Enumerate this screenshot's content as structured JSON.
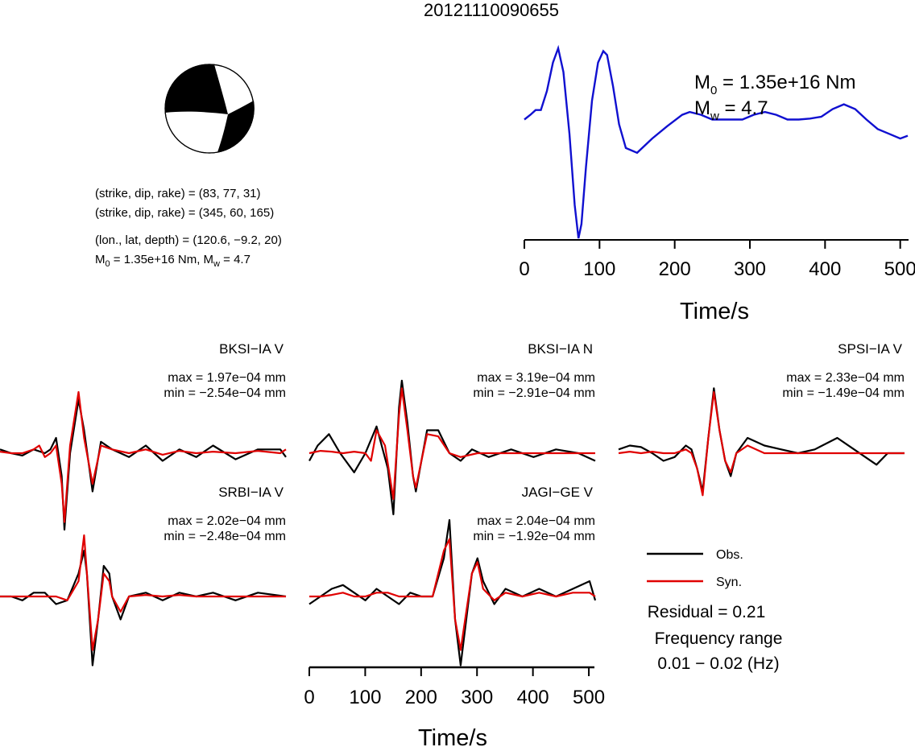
{
  "title": "20121110090655",
  "focal_mechanism": {
    "lines": [
      "(strike, dip, rake) = (83, 77, 31)",
      "(strike, dip, rake) = (345, 60, 165)",
      "(lon., lat, depth) = (120.6, −9.2, 20)"
    ],
    "m0_label": "M",
    "m0_sub": "0",
    "m0_rest": " = 1.35e+16 Nm, M",
    "mw_sub": "w",
    "mw_rest": " = 4.7"
  },
  "stf": {
    "m0_text": " = 1.35e+16 Nm",
    "mw_text": " = 4.7",
    "xlabel": "Time/s",
    "xticks": [
      "0",
      "100",
      "200",
      "300",
      "400",
      "500"
    ]
  },
  "colors": {
    "obs": "#000000",
    "syn": "#e00000",
    "stf": "#1010d0",
    "beach_fill": "#000000"
  },
  "legend": {
    "obs": "Obs.",
    "syn": "Syn."
  },
  "residual": "Residual = 0.21",
  "freq_title": "Frequency range",
  "freq_value": "0.01 − 0.02 (Hz)",
  "waveform_axis": {
    "xlabel": "Time/s",
    "xticks": [
      "0",
      "100",
      "200",
      "300",
      "400",
      "500"
    ]
  },
  "chart_data": [
    {
      "type": "line",
      "title": "",
      "xlabel": "Time/s",
      "ylabel": "",
      "xlim": [
        0,
        510
      ],
      "series": [
        {
          "name": "STF",
          "x": [
            0,
            8,
            15,
            22,
            30,
            38,
            45,
            52,
            60,
            67,
            72,
            76,
            82,
            90,
            98,
            105,
            110,
            118,
            126,
            135,
            150,
            170,
            190,
            210,
            220,
            235,
            250,
            270,
            290,
            305,
            320,
            335,
            350,
            365,
            380,
            395,
            410,
            425,
            440,
            455,
            470,
            485,
            500,
            510
          ],
          "y": [
            0.25,
            0.3,
            0.35,
            0.35,
            0.55,
            0.85,
            1.0,
            0.75,
            0.1,
            -0.65,
            -1.0,
            -0.85,
            -0.25,
            0.45,
            0.85,
            0.97,
            0.93,
            0.6,
            0.2,
            -0.05,
            -0.1,
            0.05,
            0.18,
            0.3,
            0.33,
            0.3,
            0.25,
            0.25,
            0.25,
            0.3,
            0.33,
            0.3,
            0.25,
            0.25,
            0.26,
            0.28,
            0.36,
            0.41,
            0.36,
            0.25,
            0.15,
            0.1,
            0.05,
            0.08
          ]
        }
      ]
    },
    {
      "type": "line",
      "title": "BKSI−IA V",
      "max_label": "max = 1.97e−04 mm",
      "min_label": "min = −2.54e−04 mm",
      "xlim": [
        0,
        510
      ],
      "series": [
        {
          "name": "Obs.",
          "x": [
            0,
            20,
            40,
            60,
            80,
            90,
            100,
            110,
            115,
            125,
            140,
            150,
            165,
            180,
            200,
            230,
            260,
            290,
            320,
            350,
            380,
            420,
            460,
            500,
            510
          ],
          "y": [
            0.05,
            0.0,
            -0.03,
            0.05,
            0.0,
            0.05,
            0.2,
            -0.3,
            -1.0,
            0.0,
            0.7,
            0.3,
            -0.5,
            0.15,
            0.05,
            -0.05,
            0.1,
            -0.1,
            0.05,
            -0.05,
            0.1,
            -0.08,
            0.05,
            0.05,
            -0.05
          ]
        },
        {
          "name": "Syn.",
          "x": [
            0,
            20,
            40,
            60,
            70,
            80,
            90,
            100,
            110,
            115,
            125,
            140,
            150,
            165,
            180,
            200,
            230,
            260,
            290,
            320,
            350,
            380,
            420,
            460,
            500,
            510
          ],
          "y": [
            0.02,
            0.0,
            0.0,
            0.05,
            0.1,
            -0.05,
            0.0,
            0.1,
            -0.4,
            -0.9,
            0.1,
            0.8,
            0.2,
            -0.4,
            0.1,
            0.05,
            0.0,
            0.05,
            -0.02,
            0.03,
            0.0,
            0.02,
            0.0,
            0.03,
            0.0,
            0.05
          ]
        }
      ]
    },
    {
      "type": "line",
      "title": "BKSI−IA N",
      "max_label": "max = 3.19e−04 mm",
      "min_label": "min = −2.91e−04 mm",
      "xlim": [
        0,
        510
      ],
      "series": [
        {
          "name": "Obs.",
          "x": [
            0,
            15,
            35,
            55,
            80,
            100,
            120,
            140,
            150,
            160,
            165,
            175,
            185,
            190,
            200,
            210,
            230,
            250,
            270,
            290,
            320,
            360,
            400,
            440,
            480,
            510
          ],
          "y": [
            -0.1,
            0.1,
            0.25,
            0.0,
            -0.25,
            0.0,
            0.35,
            -0.2,
            -0.8,
            0.6,
            0.95,
            0.4,
            -0.3,
            -0.5,
            -0.1,
            0.3,
            0.3,
            0.0,
            -0.1,
            0.05,
            -0.05,
            0.05,
            -0.05,
            0.05,
            0.0,
            -0.1
          ]
        },
        {
          "name": "Syn.",
          "x": [
            0,
            20,
            40,
            60,
            80,
            100,
            110,
            120,
            135,
            150,
            160,
            165,
            175,
            185,
            190,
            200,
            210,
            230,
            250,
            270,
            300,
            350,
            400,
            450,
            510
          ],
          "y": [
            0.0,
            0.03,
            0.02,
            0.0,
            0.02,
            0.0,
            -0.1,
            0.3,
            0.1,
            -0.6,
            0.5,
            0.85,
            0.3,
            -0.3,
            -0.45,
            -0.1,
            0.25,
            0.22,
            0.0,
            -0.05,
            0.0,
            0.0,
            0.0,
            0.0,
            0.0
          ]
        }
      ]
    },
    {
      "type": "line",
      "title": "SPSI−IA V",
      "max_label": "max = 2.33e−04 mm",
      "min_label": "min = −1.49e−04 mm",
      "xlim": [
        0,
        510
      ],
      "series": [
        {
          "name": "Obs.",
          "x": [
            0,
            20,
            40,
            60,
            80,
            100,
            120,
            130,
            140,
            150,
            160,
            170,
            180,
            190,
            200,
            210,
            230,
            260,
            290,
            320,
            350,
            390,
            420,
            460,
            480,
            510
          ],
          "y": [
            0.05,
            0.1,
            0.08,
            0.0,
            -0.1,
            -0.05,
            0.1,
            0.05,
            -0.2,
            -0.5,
            0.2,
            0.85,
            0.3,
            -0.1,
            -0.3,
            0.0,
            0.2,
            0.1,
            0.05,
            0.0,
            0.05,
            0.2,
            0.05,
            -0.15,
            0.0,
            0.0
          ]
        },
        {
          "name": "Syn.",
          "x": [
            0,
            20,
            40,
            60,
            80,
            100,
            120,
            130,
            140,
            150,
            160,
            170,
            180,
            190,
            200,
            210,
            230,
            260,
            290,
            320,
            350,
            390,
            420,
            460,
            510
          ],
          "y": [
            0.0,
            0.02,
            0.0,
            0.02,
            0.0,
            0.0,
            0.05,
            0.0,
            -0.2,
            -0.55,
            0.2,
            0.8,
            0.3,
            -0.1,
            -0.25,
            0.0,
            0.1,
            0.0,
            0.0,
            0.0,
            0.0,
            0.0,
            0.0,
            0.0,
            0.0
          ]
        }
      ]
    },
    {
      "type": "line",
      "title": "SRBI−IA V",
      "max_label": "max = 2.02e−04 mm",
      "min_label": "min = −2.48e−04 mm",
      "xlim": [
        0,
        510
      ],
      "series": [
        {
          "name": "Obs.",
          "x": [
            0,
            20,
            40,
            60,
            80,
            100,
            120,
            140,
            150,
            155,
            165,
            175,
            185,
            195,
            200,
            215,
            230,
            260,
            290,
            320,
            350,
            380,
            420,
            460,
            510
          ],
          "y": [
            0.0,
            0.0,
            -0.05,
            0.05,
            0.05,
            -0.1,
            -0.05,
            0.3,
            0.6,
            0.3,
            -0.9,
            -0.3,
            0.4,
            0.3,
            0.0,
            -0.3,
            0.0,
            0.05,
            -0.05,
            0.05,
            0.0,
            0.05,
            -0.05,
            0.05,
            0.0
          ]
        },
        {
          "name": "Syn.",
          "x": [
            0,
            20,
            40,
            60,
            80,
            100,
            120,
            140,
            150,
            155,
            165,
            175,
            185,
            195,
            200,
            215,
            230,
            260,
            290,
            320,
            350,
            380,
            420,
            460,
            510
          ],
          "y": [
            0.0,
            0.0,
            0.0,
            0.0,
            0.0,
            0.0,
            -0.05,
            0.2,
            0.8,
            0.3,
            -0.7,
            -0.3,
            0.3,
            0.2,
            0.0,
            -0.2,
            0.0,
            0.02,
            0.0,
            0.02,
            0.0,
            0.0,
            0.0,
            0.0,
            0.0
          ]
        }
      ]
    },
    {
      "type": "line",
      "title": "JAGI−GE V",
      "max_label": "max = 2.04e−04 mm",
      "min_label": "min = −1.92e−04 mm",
      "xlim": [
        0,
        510
      ],
      "series": [
        {
          "name": "Obs.",
          "x": [
            0,
            20,
            40,
            60,
            80,
            100,
            120,
            140,
            160,
            180,
            200,
            220,
            240,
            250,
            260,
            270,
            280,
            290,
            300,
            310,
            330,
            350,
            380,
            410,
            440,
            470,
            500,
            510
          ],
          "y": [
            -0.1,
            0.0,
            0.1,
            0.15,
            0.05,
            -0.05,
            0.1,
            0.0,
            -0.1,
            0.05,
            0.0,
            0.0,
            0.5,
            1.0,
            -0.3,
            -0.9,
            -0.3,
            0.3,
            0.5,
            0.2,
            -0.1,
            0.1,
            0.0,
            0.1,
            0.0,
            0.1,
            0.2,
            -0.05
          ]
        },
        {
          "name": "Syn.",
          "x": [
            0,
            20,
            40,
            60,
            80,
            100,
            120,
            140,
            160,
            180,
            200,
            220,
            240,
            250,
            260,
            270,
            280,
            290,
            300,
            310,
            330,
            350,
            380,
            410,
            440,
            470,
            500,
            510
          ],
          "y": [
            0.0,
            0.0,
            0.02,
            0.05,
            0.0,
            0.0,
            0.05,
            0.05,
            0.0,
            0.0,
            0.0,
            0.0,
            0.6,
            0.75,
            -0.3,
            -0.7,
            -0.2,
            0.3,
            0.45,
            0.1,
            -0.05,
            0.05,
            0.0,
            0.05,
            0.0,
            0.05,
            0.05,
            0.0
          ]
        }
      ]
    }
  ]
}
